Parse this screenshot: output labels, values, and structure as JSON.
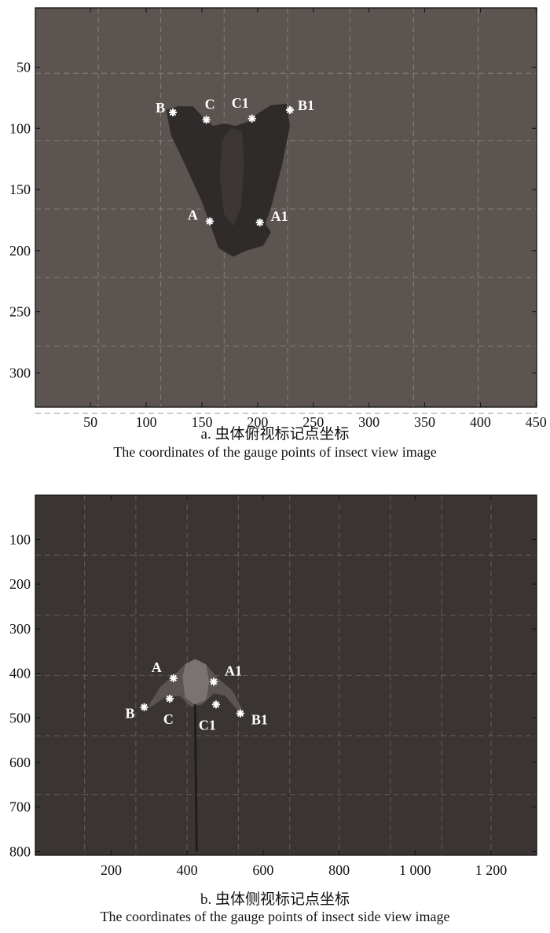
{
  "chart_data": [
    {
      "type": "scatter",
      "panel": "a",
      "caption_zh": "a. 虫体俯视标记点坐标",
      "caption_en": "The coordinates of the gauge points of insect view image",
      "xlim": [
        0.5,
        450.5
      ],
      "ylim": [
        1.5,
        328
      ],
      "y_reversed": true,
      "x_ticks": [
        50,
        100,
        150,
        200,
        250,
        300,
        350,
        400,
        450
      ],
      "x_tick_labels": [
        "50",
        "100",
        "150",
        "200",
        "250",
        "300",
        "350",
        "400",
        "450"
      ],
      "y_ticks": [
        50,
        100,
        150,
        200,
        250,
        300
      ],
      "y_tick_labels": [
        "50",
        "100",
        "150",
        "200",
        "250",
        "300"
      ],
      "background_color": "#5b5451",
      "marker": "asterisk",
      "marker_color": "#ffffff",
      "points": [
        {
          "label": "B",
          "x": 124,
          "y": 87
        },
        {
          "label": "C",
          "x": 154,
          "y": 93
        },
        {
          "label": "C1",
          "x": 195,
          "y": 92
        },
        {
          "label": "B1",
          "x": 229,
          "y": 85
        },
        {
          "label": "A",
          "x": 157,
          "y": 176
        },
        {
          "label": "A1",
          "x": 202,
          "y": 177
        }
      ]
    },
    {
      "type": "scatter",
      "panel": "b",
      "caption_zh": "b. 虫体侧视标记点坐标",
      "caption_en": "The coordinates of the gauge points of insect side view image",
      "xlim": [
        0.5,
        1320
      ],
      "ylim": [
        0.5,
        808
      ],
      "y_reversed": true,
      "x_ticks": [
        200,
        400,
        600,
        800,
        1000,
        1200
      ],
      "x_tick_labels": [
        "200",
        "400",
        "600",
        "800",
        "1 000",
        "1 200"
      ],
      "y_ticks": [
        100,
        200,
        300,
        400,
        500,
        600,
        700,
        800
      ],
      "y_tick_labels": [
        "100",
        "200",
        "300",
        "400",
        "500",
        "600",
        "700",
        "800"
      ],
      "background_color": "#3a3533",
      "marker": "asterisk",
      "marker_color": "#ffffff",
      "points": [
        {
          "label": "A",
          "x": 364,
          "y": 411
        },
        {
          "label": "A1",
          "x": 470,
          "y": 419
        },
        {
          "label": "B",
          "x": 287,
          "y": 476
        },
        {
          "label": "C",
          "x": 354,
          "y": 457
        },
        {
          "label": "C1",
          "x": 476,
          "y": 470
        },
        {
          "label": "B1",
          "x": 540,
          "y": 490
        }
      ]
    }
  ]
}
